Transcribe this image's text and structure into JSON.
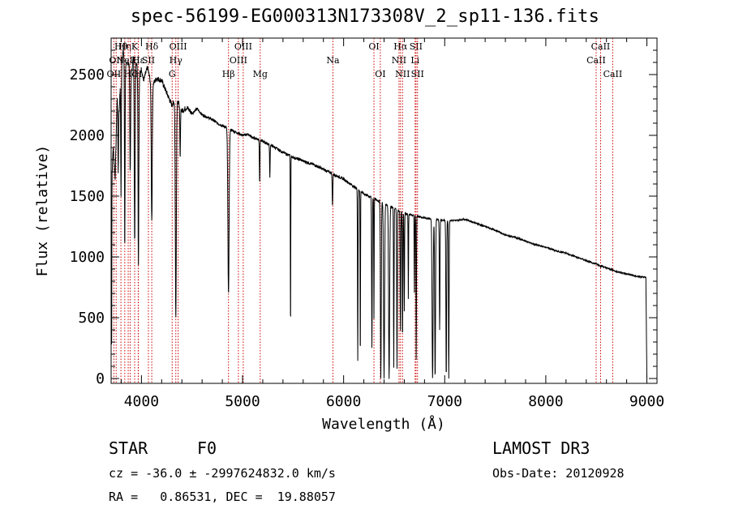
{
  "chart_data": {
    "type": "line",
    "title": "spec-56199-EG000313N173308V_2_sp11-136.fits",
    "xlabel": "Wavelength (Å)",
    "ylabel": "Flux (relative)",
    "xlim": [
      3700,
      9100
    ],
    "ylim": [
      -40,
      2800
    ],
    "x_ticks": [
      4000,
      5000,
      6000,
      7000,
      8000,
      9000
    ],
    "y_ticks": [
      0,
      500,
      1000,
      1500,
      2000,
      2500
    ],
    "grid": false,
    "series": [
      {
        "name": "spectrum",
        "color": "#000000",
        "points": [
          [
            3700,
            1500
          ],
          [
            3720,
            1900
          ],
          [
            3740,
            1650
          ],
          [
            3760,
            2300
          ],
          [
            3780,
            2200
          ],
          [
            3800,
            2600
          ],
          [
            3820,
            2700
          ],
          [
            3840,
            2550
          ],
          [
            3860,
            2600
          ],
          [
            3880,
            2580
          ],
          [
            3900,
            2500
          ],
          [
            3920,
            2650
          ],
          [
            3950,
            2600
          ],
          [
            3980,
            2480
          ],
          [
            4000,
            2550
          ],
          [
            4020,
            2450
          ],
          [
            4060,
            2560
          ],
          [
            4100,
            2400
          ],
          [
            4150,
            2470
          ],
          [
            4200,
            2450
          ],
          [
            4250,
            2350
          ],
          [
            4300,
            2250
          ],
          [
            4350,
            2300
          ],
          [
            4400,
            2200
          ],
          [
            4450,
            2230
          ],
          [
            4500,
            2180
          ],
          [
            4550,
            2220
          ],
          [
            4600,
            2170
          ],
          [
            4650,
            2150
          ],
          [
            4700,
            2130
          ],
          [
            4750,
            2100
          ],
          [
            4800,
            2080
          ],
          [
            4850,
            2060
          ],
          [
            4900,
            2040
          ],
          [
            4950,
            2020
          ],
          [
            5000,
            2000
          ],
          [
            5050,
            2010
          ],
          [
            5100,
            1980
          ],
          [
            5150,
            1970
          ],
          [
            5200,
            1950
          ],
          [
            5300,
            1910
          ],
          [
            5400,
            1860
          ],
          [
            5500,
            1820
          ],
          [
            5600,
            1790
          ],
          [
            5700,
            1760
          ],
          [
            5800,
            1720
          ],
          [
            5900,
            1680
          ],
          [
            6000,
            1640
          ],
          [
            6100,
            1580
          ],
          [
            6200,
            1520
          ],
          [
            6300,
            1480
          ],
          [
            6400,
            1440
          ],
          [
            6500,
            1400
          ],
          [
            6600,
            1360
          ],
          [
            6700,
            1340
          ],
          [
            6800,
            1320
          ],
          [
            6900,
            1310
          ],
          [
            7000,
            1300
          ],
          [
            7100,
            1300
          ],
          [
            7200,
            1310
          ],
          [
            7300,
            1280
          ],
          [
            7400,
            1250
          ],
          [
            7500,
            1220
          ],
          [
            7600,
            1180
          ],
          [
            7700,
            1160
          ],
          [
            7800,
            1130
          ],
          [
            7900,
            1100
          ],
          [
            8000,
            1080
          ],
          [
            8100,
            1050
          ],
          [
            8200,
            1030
          ],
          [
            8300,
            1000
          ],
          [
            8400,
            970
          ],
          [
            8500,
            940
          ],
          [
            8600,
            910
          ],
          [
            8700,
            880
          ],
          [
            8800,
            860
          ],
          [
            8900,
            840
          ],
          [
            8990,
            830
          ],
          [
            9000,
            0
          ]
        ],
        "absorption_lines": [
          [
            3705,
            0,
            3
          ],
          [
            3770,
            1700,
            6
          ],
          [
            3798,
            1500,
            6
          ],
          [
            3835,
            1050,
            6
          ],
          [
            3889,
            1700,
            8
          ],
          [
            3933,
            1100,
            8
          ],
          [
            3970,
            950,
            8
          ],
          [
            4102,
            1300,
            10
          ],
          [
            4340,
            500,
            10
          ],
          [
            4383,
            1800,
            6
          ],
          [
            4861,
            700,
            12
          ],
          [
            5169,
            1600,
            5
          ],
          [
            5270,
            1650,
            5
          ],
          [
            5475,
            350,
            4
          ],
          [
            5890,
            1420,
            6
          ],
          [
            6140,
            150,
            5
          ],
          [
            6165,
            100,
            4
          ],
          [
            6280,
            250,
            6
          ],
          [
            6300,
            500,
            4
          ],
          [
            6368,
            0,
            8
          ],
          [
            6400,
            0,
            10
          ],
          [
            6450,
            0,
            10
          ],
          [
            6496,
            80,
            5
          ],
          [
            6528,
            80,
            6
          ],
          [
            6562,
            400,
            6
          ],
          [
            6583,
            300,
            5
          ],
          [
            6600,
            550,
            5
          ],
          [
            6640,
            650,
            4
          ],
          [
            6700,
            700,
            4
          ],
          [
            6718,
            150,
            5
          ],
          [
            6880,
            0,
            10
          ],
          [
            6905,
            0,
            8
          ],
          [
            6950,
            400,
            6
          ],
          [
            7015,
            0,
            7
          ],
          [
            7040,
            0,
            6
          ],
          [
            8498,
            950,
            5
          ],
          [
            8542,
            920,
            5
          ],
          [
            8662,
            900,
            5
          ]
        ]
      }
    ],
    "line_markers": [
      {
        "wavelength": 3727,
        "label": "OII",
        "row": 3
      },
      {
        "wavelength": 3750,
        "label": "OII",
        "row": 2
      },
      {
        "wavelength": 3797,
        "label": "Hθ",
        "row": 1
      },
      {
        "wavelength": 3835,
        "label": "Hη",
        "row": 1
      },
      {
        "wavelength": 3869,
        "label": "NeIII",
        "row": 2
      },
      {
        "wavelength": 3889,
        "label": "Hζ",
        "row": 3
      },
      {
        "wavelength": 3933,
        "label": "K",
        "row": 1
      },
      {
        "wavelength": 3968,
        "label": "H",
        "row": 3
      },
      {
        "wavelength": 3970,
        "label": "Hε",
        "row": 2
      },
      {
        "wavelength": 4069,
        "label": "SII",
        "row": 2
      },
      {
        "wavelength": 4102,
        "label": "Hδ",
        "row": 1
      },
      {
        "wavelength": 4304,
        "label": "G",
        "row": 3
      },
      {
        "wavelength": 4340,
        "label": "Hγ",
        "row": 2
      },
      {
        "wavelength": 4363,
        "label": "OIII",
        "row": 1
      },
      {
        "wavelength": 4861,
        "label": "Hβ",
        "row": 3
      },
      {
        "wavelength": 4959,
        "label": "OIII",
        "row": 2
      },
      {
        "wavelength": 5007,
        "label": "OIII",
        "row": 1
      },
      {
        "wavelength": 5175,
        "label": "Mg",
        "row": 3
      },
      {
        "wavelength": 5894,
        "label": "Na",
        "row": 2
      },
      {
        "wavelength": 6300,
        "label": "OI",
        "row": 1
      },
      {
        "wavelength": 6363,
        "label": "OI",
        "row": 3
      },
      {
        "wavelength": 6548,
        "label": "NII",
        "row": 2
      },
      {
        "wavelength": 6563,
        "label": "Hα",
        "row": 1
      },
      {
        "wavelength": 6583,
        "label": "NII",
        "row": 3
      },
      {
        "wavelength": 6707,
        "label": "Li",
        "row": 2
      },
      {
        "wavelength": 6716,
        "label": "SII",
        "row": 1
      },
      {
        "wavelength": 6731,
        "label": "SII",
        "row": 3
      },
      {
        "wavelength": 8498,
        "label": "CaII",
        "row": 2
      },
      {
        "wavelength": 8542,
        "label": "CaII",
        "row": 1
      },
      {
        "wavelength": 8662,
        "label": "CaII",
        "row": 3
      }
    ]
  },
  "info": {
    "object_class": "STAR",
    "subclass": "F0",
    "survey": "LAMOST DR3",
    "redshift_line": "cz = -36.0 ± -2997624832.0 km/s",
    "obs_date": "Obs-Date: 20120928",
    "coords": "RA =   0.86531, DEC =  19.88057"
  },
  "colors": {
    "spectrum": "#000000",
    "marker_lines": "#cc0000",
    "axes": "#000000"
  }
}
